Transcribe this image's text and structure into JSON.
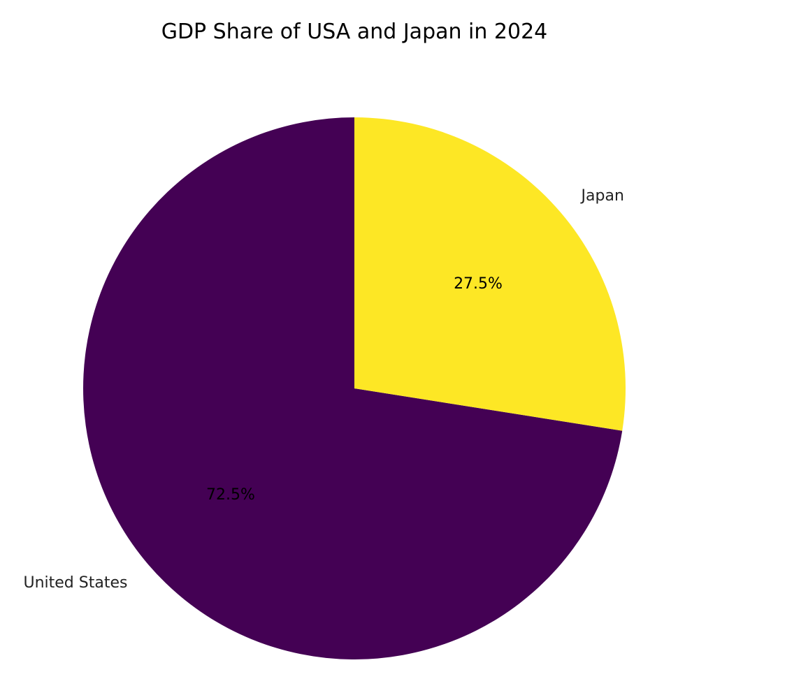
{
  "chart_data": {
    "type": "pie",
    "title": "GDP Share of USA and Japan in 2024",
    "start_angle_deg": 90,
    "direction": "counterclockwise",
    "slices": [
      {
        "label": "United States",
        "value": 72.5,
        "pct_label": "72.5%",
        "color": "#440154"
      },
      {
        "label": "Japan",
        "value": 27.5,
        "pct_label": "27.5%",
        "color": "#fde725"
      }
    ]
  }
}
